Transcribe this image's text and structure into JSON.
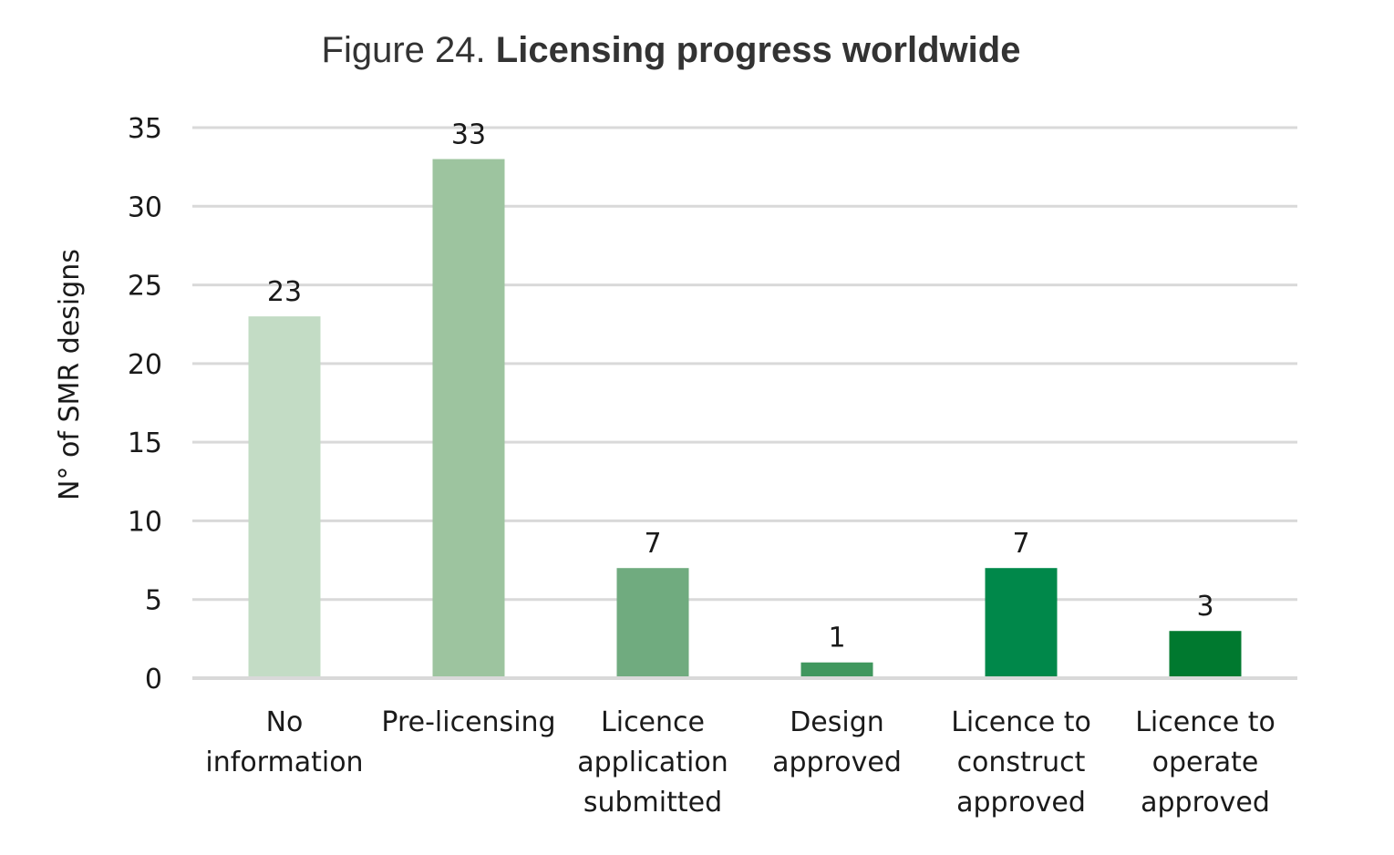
{
  "chart_data": {
    "type": "bar",
    "title_prefix": "Figure 24.",
    "title": "Licensing progress worldwide",
    "xlabel": "",
    "ylabel": "N° of SMR designs",
    "ylim": [
      0,
      35
    ],
    "yticks": [
      "0",
      "5",
      "10",
      "15",
      "20",
      "25",
      "30",
      "35"
    ],
    "grid": true,
    "legend": "none",
    "categories": [
      [
        "No",
        "information"
      ],
      [
        "Pre-licensing"
      ],
      [
        "Licence",
        "application",
        "submitted"
      ],
      [
        "Design",
        "approved"
      ],
      [
        "Licence to",
        "construct",
        "approved"
      ],
      [
        "Licence to",
        "operate",
        "approved"
      ]
    ],
    "values": [
      23,
      33,
      7,
      1,
      7,
      3
    ],
    "data_labels": [
      "23",
      "33",
      "7",
      "1",
      "7",
      "3"
    ],
    "colors": [
      "#c3dcc5",
      "#9dc49f",
      "#70ab7f",
      "#40975e",
      "#00884a",
      "#00792f"
    ],
    "grid_color": "#d9d9d9"
  }
}
